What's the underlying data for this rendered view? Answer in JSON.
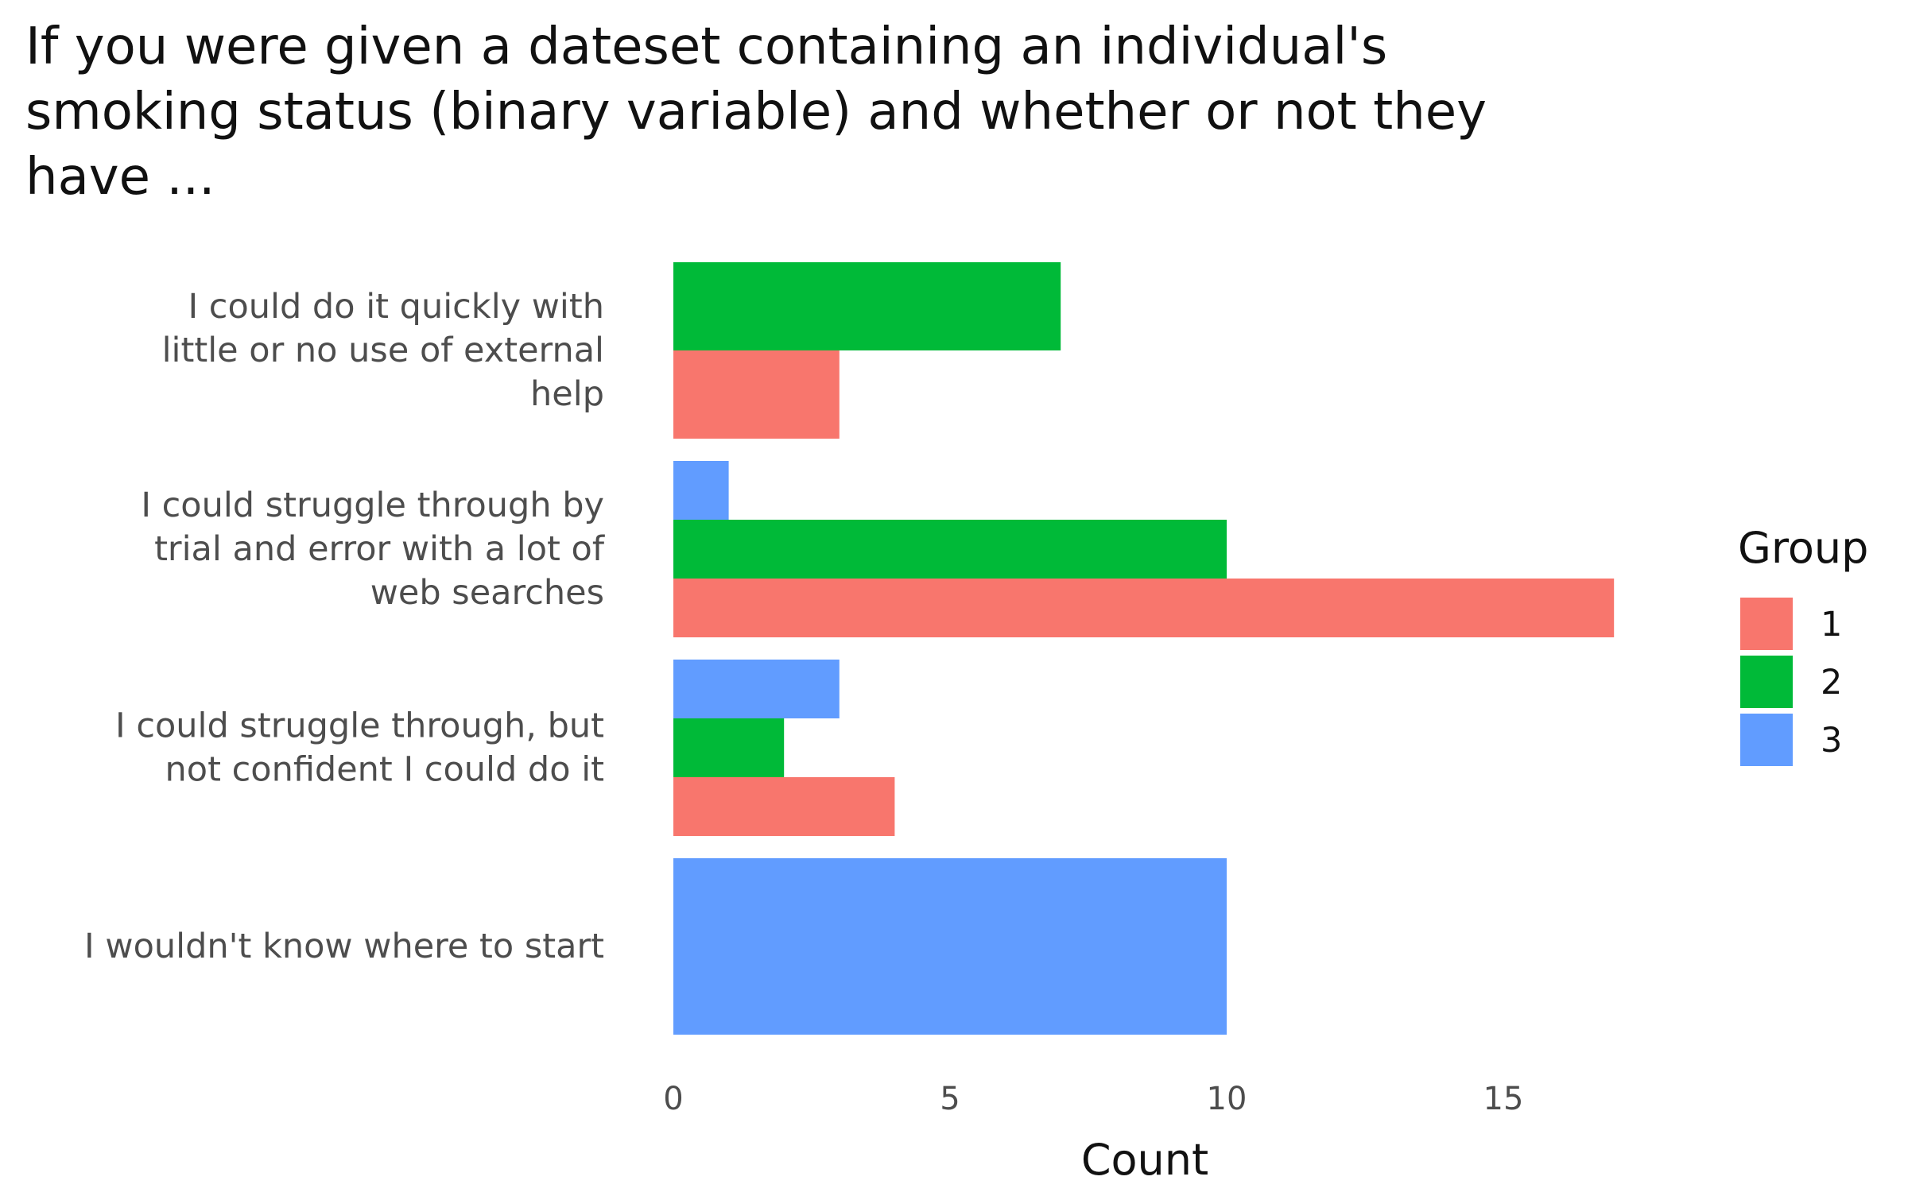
{
  "chart_data": {
    "type": "bar",
    "orientation": "horizontal",
    "position": "dodge",
    "title": "If you were given a dateset containing an individual's smoking status (binary variable) and whether or not they have ...",
    "xlabel": "Count",
    "ylabel": "",
    "xlim": [
      0,
      19
    ],
    "xticks": [
      0,
      5,
      10,
      15
    ],
    "grid": false,
    "legend_title": "Group",
    "legend_position": "right",
    "categories": [
      [
        "I could do it quickly with",
        "little or no use of external",
        "help"
      ],
      [
        "I could struggle through by",
        "trial and error with a lot of",
        "web searches"
      ],
      [
        "I could struggle through, but",
        "not confident I could do it"
      ],
      [
        "I wouldn't know where to start"
      ]
    ],
    "series": [
      {
        "name": "1",
        "color": "#F8766D",
        "values": [
          3,
          17,
          4,
          null
        ]
      },
      {
        "name": "2",
        "color": "#00BA38",
        "values": [
          7,
          10,
          2,
          null
        ]
      },
      {
        "name": "3",
        "color": "#619CFF",
        "values": [
          null,
          1,
          3,
          10
        ]
      }
    ]
  }
}
